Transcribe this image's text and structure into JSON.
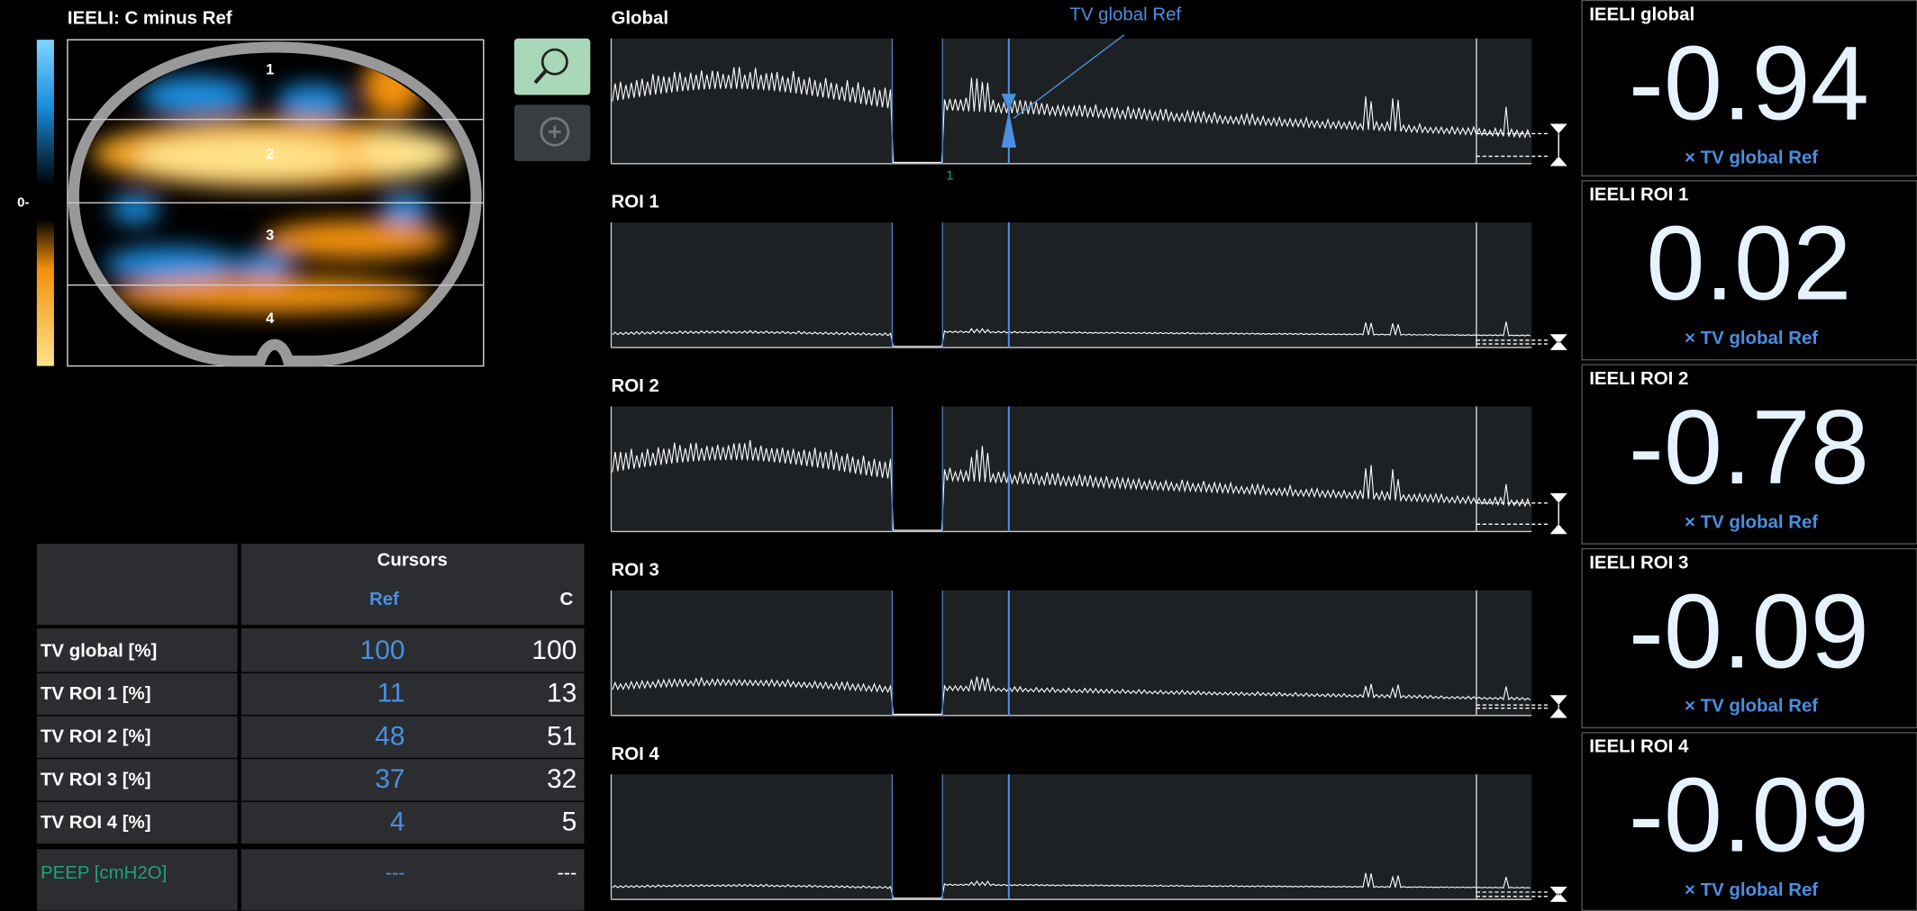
{
  "image_panel": {
    "title": "IEELI: C minus Ref",
    "scale_zero": "0-",
    "region_labels": [
      "1",
      "2",
      "3",
      "4"
    ]
  },
  "waveforms": {
    "panels": [
      {
        "title": "Global"
      },
      {
        "title": "ROI 1"
      },
      {
        "title": "ROI 2"
      },
      {
        "title": "ROI 3"
      },
      {
        "title": "ROI 4"
      }
    ],
    "ref_annotation": "TV global Ref",
    "cursor_marker": "1"
  },
  "table": {
    "group_header": "Cursors",
    "columns": [
      "Ref",
      "C"
    ],
    "rows": [
      {
        "label": "TV global [%]",
        "ref": 100,
        "c": 100
      },
      {
        "label": "TV ROI 1 [%]",
        "ref": 11,
        "c": 13
      },
      {
        "label": "TV ROI 2 [%]",
        "ref": 48,
        "c": 51
      },
      {
        "label": "TV ROI 3 [%]",
        "ref": 37,
        "c": 32
      },
      {
        "label": "TV ROI 4 [%]",
        "ref": 4,
        "c": 5
      },
      {
        "label": "PEEP [cmH2O]",
        "ref": "---",
        "c": "---"
      }
    ]
  },
  "results": [
    {
      "title": "IEELI global",
      "value": -0.94,
      "unit": "× TV global Ref"
    },
    {
      "title": "IEELI ROI 1",
      "value": 0.02,
      "unit": "× TV global Ref"
    },
    {
      "title": "IEELI ROI 2",
      "value": -0.78,
      "unit": "× TV global Ref"
    },
    {
      "title": "IEELI ROI 3",
      "value": -0.09,
      "unit": "× TV global Ref"
    },
    {
      "title": "IEELI ROI 4",
      "value": -0.09,
      "unit": "× TV global Ref"
    }
  ]
}
